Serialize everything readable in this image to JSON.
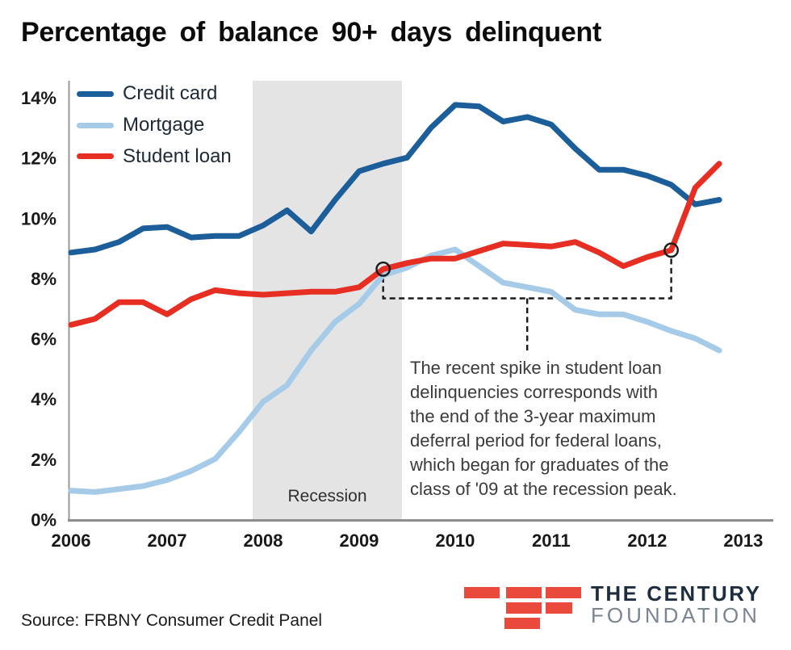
{
  "title": "Percentage of balance 90+ days delinquent",
  "source": "Source: FRBNY Consumer Credit Panel",
  "annotation": {
    "lines": [
      "The recent spike in student loan",
      "delinquencies corresponds with",
      "the end of the 3-year maximum",
      "deferral period for federal loans,",
      "which began for graduates of the",
      "class of '09 at the recession peak."
    ]
  },
  "logo": {
    "line1": "THE CENTURY",
    "line2": "FOUNDATION",
    "bar_color": "#ea4a3b",
    "line1_color": "#1e2e3f",
    "line2_color": "#7b8591"
  },
  "chart_data": {
    "type": "line",
    "title": "Percentage of balance 90+ days delinquent",
    "x_labels": [
      "2006",
      "2007",
      "2008",
      "2009",
      "2010",
      "2011",
      "2012",
      "2013"
    ],
    "x_unit": "quarterly, 2006-Q1 through 2012-Q4",
    "y_tick_values": [
      0,
      2,
      4,
      6,
      8,
      10,
      12,
      14
    ],
    "y_tick_suffix": "%",
    "ylim": [
      0,
      14.55
    ],
    "grid": false,
    "legend_position": "top-left inside plot",
    "series": [
      {
        "name": "Credit card",
        "color": "#1b5e99",
        "values": [
          8.85,
          8.95,
          9.2,
          9.65,
          9.7,
          9.35,
          9.4,
          9.4,
          9.75,
          10.25,
          9.55,
          10.6,
          11.55,
          11.8,
          12.0,
          13.0,
          13.75,
          13.7,
          13.2,
          13.35,
          13.1,
          12.3,
          11.6,
          11.6,
          11.4,
          11.1,
          10.45,
          10.6
        ]
      },
      {
        "name": "Mortgage",
        "color": "#a6cbe8",
        "values": [
          0.95,
          0.9,
          1.0,
          1.1,
          1.3,
          1.6,
          2.0,
          2.9,
          3.9,
          4.45,
          5.6,
          6.55,
          7.15,
          8.1,
          8.35,
          8.75,
          8.95,
          8.4,
          7.85,
          7.7,
          7.55,
          6.95,
          6.8,
          6.8,
          6.55,
          6.25,
          6.0,
          5.6
        ]
      },
      {
        "name": "Student loan",
        "color": "#e62e22",
        "values": [
          6.45,
          6.65,
          7.2,
          7.2,
          6.8,
          7.3,
          7.6,
          7.5,
          7.45,
          7.5,
          7.55,
          7.55,
          7.7,
          8.3,
          8.5,
          8.65,
          8.65,
          8.9,
          9.15,
          9.1,
          9.05,
          9.2,
          8.85,
          8.4,
          8.7,
          8.93,
          11.0,
          11.8
        ]
      }
    ],
    "recession_band": {
      "label": "Recession",
      "start": "2007-Q4",
      "end": "2009-Q2"
    },
    "callout_circles": [
      {
        "series": "Student loan",
        "quarter_index": 13,
        "period": "2009-Q2",
        "value": 8.3
      },
      {
        "series": "Student loan",
        "quarter_index": 25,
        "period": "2012-Q2",
        "value": 8.93
      }
    ]
  }
}
